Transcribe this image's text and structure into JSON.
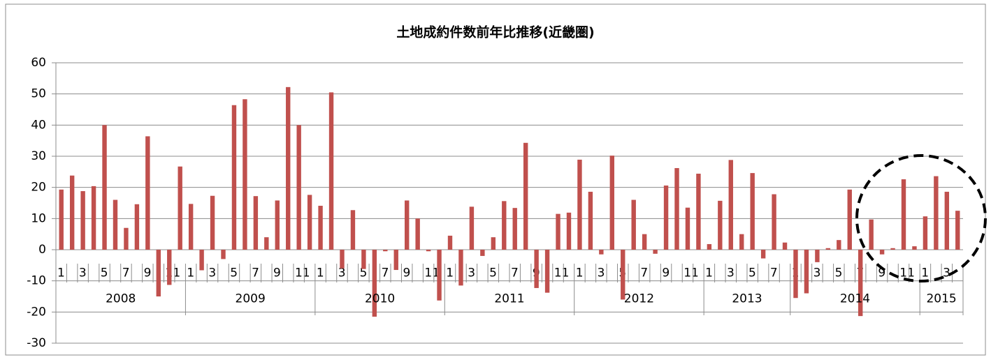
{
  "chart_data": {
    "type": "bar",
    "title": "土地成約件数前年比推移(近畿圏)",
    "categories": [
      "1",
      null,
      "3",
      null,
      "5",
      null,
      "7",
      null,
      "9",
      null,
      "11",
      null,
      "1",
      null,
      "3",
      null,
      "5",
      null,
      "7",
      null,
      "9",
      null,
      "11",
      null,
      "1",
      null,
      "3",
      null,
      "5",
      null,
      "7",
      null,
      "9",
      null,
      "11",
      null,
      "1",
      null,
      "3",
      null,
      "5",
      null,
      "7",
      null,
      "9",
      null,
      "11",
      null,
      "1",
      null,
      "3",
      null,
      "5",
      null,
      "7",
      null,
      "9",
      null,
      "11",
      null,
      "1",
      null,
      "3",
      null,
      "5",
      null,
      "7",
      null,
      "1",
      null,
      "3",
      null,
      "5",
      null,
      "7",
      null,
      "9",
      null,
      "11",
      null,
      "1",
      null,
      "3",
      null
    ],
    "groups": [
      "2008",
      "2009",
      "2010",
      "2011",
      "2012",
      "2013",
      "2014",
      "2015"
    ],
    "values": [
      19.3,
      23.8,
      18.8,
      20.4,
      40,
      16,
      7,
      14.6,
      36.4,
      -15,
      -11.3,
      26.7,
      14.7,
      -6.6,
      17.3,
      -3,
      46.4,
      48.3,
      17.2,
      4,
      15.8,
      52.2,
      40,
      17.6,
      14.1,
      50.5,
      -6,
      12.7,
      -6.2,
      -21.5,
      -0.5,
      -6.5,
      15.8,
      10,
      -0.5,
      -16.3,
      4.5,
      -11.5,
      13.8,
      -2,
      4,
      15.6,
      13.4,
      34.3,
      -12.3,
      -13.8,
      11.5,
      11.9,
      28.9,
      18.6,
      -1.5,
      30.2,
      -16,
      16,
      5,
      -1.3,
      20.6,
      26.2,
      13.5,
      24.4,
      1.8,
      15.7,
      28.8,
      5,
      24.6,
      -2.8,
      17.8,
      2.3,
      -15.5,
      -14,
      -4,
      0.5,
      3.1,
      19.3,
      -21.3,
      9.7,
      -1.5,
      0.5,
      22.6,
      1.1,
      10.7,
      23.6,
      18.6,
      12.5
    ],
    "color": "#c0504d",
    "ylim": [
      -30,
      60
    ],
    "yticks": [
      -30,
      -20,
      -10,
      0,
      10,
      20,
      30,
      40,
      50,
      60
    ],
    "grid": true
  }
}
